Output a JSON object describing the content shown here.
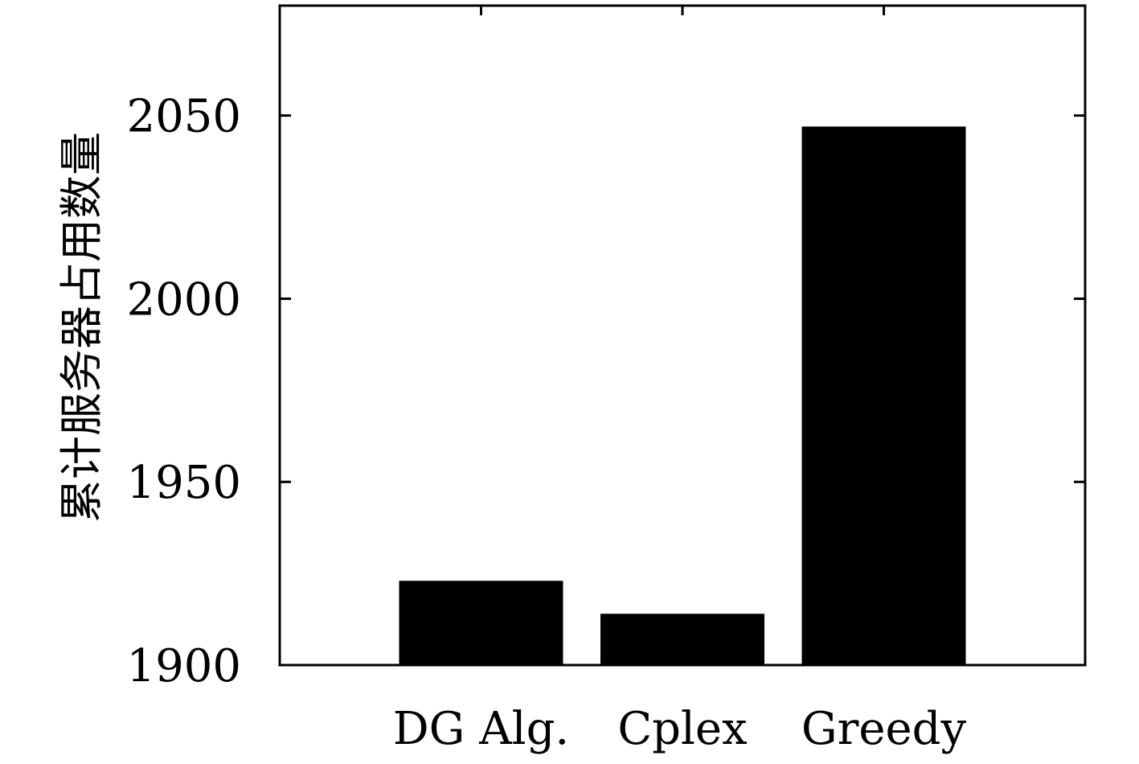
{
  "chart_data": {
    "type": "bar",
    "title": "",
    "xlabel": "",
    "ylabel": "累计服务器占用数量",
    "categories": [
      "DG Alg.",
      "Cplex",
      "Greedy"
    ],
    "values": [
      1923,
      1914,
      2047
    ],
    "ylim": [
      1900,
      2080
    ],
    "yticks": [
      1900,
      1950,
      2000,
      2050
    ],
    "grid": false,
    "legend": "none",
    "bar_color": "#000000"
  }
}
